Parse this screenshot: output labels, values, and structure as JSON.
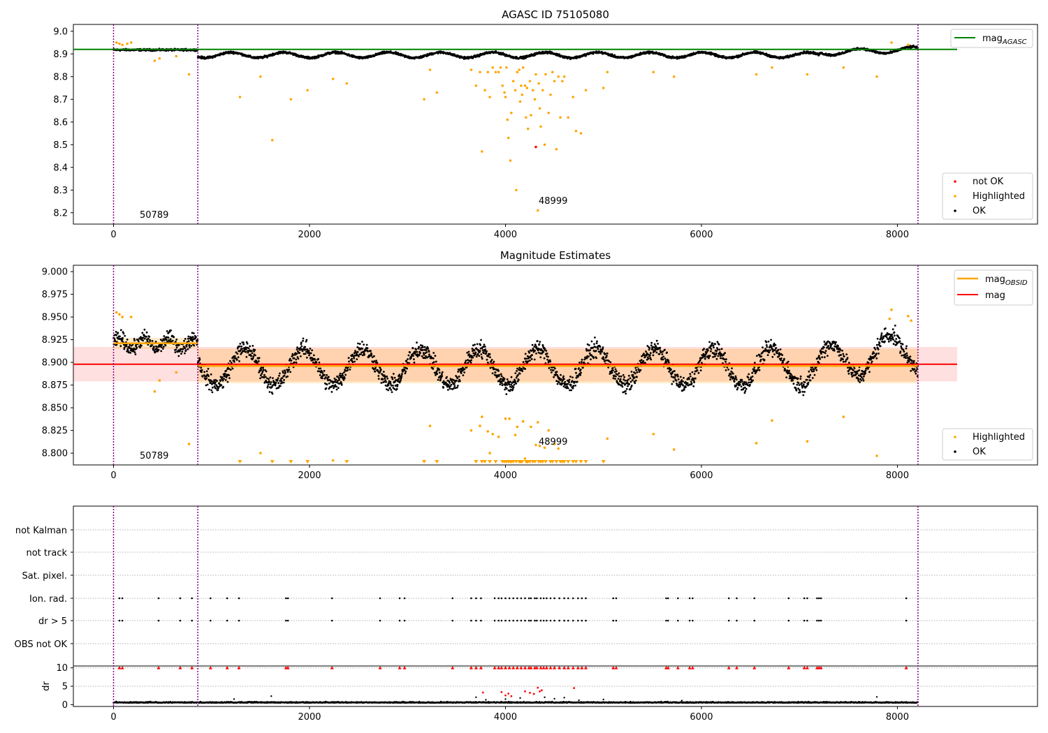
{
  "colors": {
    "ok": "#000000",
    "highlighted": "#ffa500",
    "not_ok": "#ff0000",
    "mag_agasc_line": "#008000",
    "mag_obsid_line": "#ffa500",
    "mag_line": "#ff0000",
    "obs_separator": "#800080"
  },
  "chart_data": [
    {
      "type": "scatter",
      "title": "AGASC ID 75105080",
      "xlim": [
        -410,
        9430
      ],
      "ylim": [
        8.15,
        9.03
      ],
      "xticks": [
        "0",
        "2000",
        "4000",
        "6000",
        "8000"
      ],
      "xtick_values": [
        0,
        2000,
        4000,
        6000,
        8000
      ],
      "yticks": [
        "9.0",
        "8.9",
        "8.8",
        "8.7",
        "8.6",
        "8.5",
        "8.4",
        "8.3",
        "8.2"
      ],
      "ytick_values": [
        9.0,
        8.9,
        8.8,
        8.7,
        8.6,
        8.5,
        8.4,
        8.3,
        8.2
      ],
      "obs_boundaries": [
        0,
        860,
        8210
      ],
      "lines": [
        {
          "name": "mag_AGASC",
          "y": 8.92,
          "x": [
            -410,
            8610
          ]
        }
      ],
      "annotations": [
        {
          "text": "50789",
          "x": 270,
          "y": 8.17
        },
        {
          "text": "48999",
          "x": 4380,
          "y": 8.23
        }
      ],
      "legend_lines": [
        {
          "label": "mag",
          "sub": "AGASC"
        }
      ],
      "legend_points": [
        {
          "label": "not OK"
        },
        {
          "label": "Highlighted"
        },
        {
          "label": "OK"
        }
      ],
      "series": [
        {
          "name": "OK",
          "note": "dense band; mean ≈ 8.92 for obs 50789 (x 0–860), ≈ 8.895 oscillating ±0.02 for obs 48999 (x 860–8210), rising to ≈ 8.92 after x 7200"
        },
        {
          "name": "Highlighted",
          "points": [
            [
              30,
              8.95
            ],
            [
              60,
              8.945
            ],
            [
              90,
              8.94
            ],
            [
              140,
              8.945
            ],
            [
              180,
              8.95
            ],
            [
              420,
              8.87
            ],
            [
              470,
              8.88
            ],
            [
              640,
              8.89
            ],
            [
              770,
              8.81
            ],
            [
              1290,
              8.71
            ],
            [
              1500,
              8.8
            ],
            [
              1620,
              8.52
            ],
            [
              1810,
              8.7
            ],
            [
              1980,
              8.74
            ],
            [
              2240,
              8.79
            ],
            [
              2380,
              8.77
            ],
            [
              3170,
              8.7
            ],
            [
              3230,
              8.83
            ],
            [
              3300,
              8.73
            ],
            [
              3650,
              8.83
            ],
            [
              3700,
              8.76
            ],
            [
              3740,
              8.82
            ],
            [
              3760,
              8.47
            ],
            [
              3790,
              8.74
            ],
            [
              3820,
              8.82
            ],
            [
              3840,
              8.71
            ],
            [
              3870,
              8.84
            ],
            [
              3900,
              8.82
            ],
            [
              3930,
              8.82
            ],
            [
              3950,
              8.84
            ],
            [
              3970,
              8.76
            ],
            [
              3990,
              8.73
            ],
            [
              4000,
              8.71
            ],
            [
              4010,
              8.84
            ],
            [
              4020,
              8.61
            ],
            [
              4030,
              8.53
            ],
            [
              4050,
              8.43
            ],
            [
              4060,
              8.64
            ],
            [
              4080,
              8.78
            ],
            [
              4100,
              8.74
            ],
            [
              4110,
              8.3
            ],
            [
              4120,
              8.82
            ],
            [
              4140,
              8.83
            ],
            [
              4150,
              8.69
            ],
            [
              4160,
              8.76
            ],
            [
              4170,
              8.72
            ],
            [
              4180,
              8.84
            ],
            [
              4200,
              8.76
            ],
            [
              4210,
              8.62
            ],
            [
              4220,
              8.75
            ],
            [
              4230,
              8.57
            ],
            [
              4250,
              8.78
            ],
            [
              4260,
              8.63
            ],
            [
              4280,
              8.74
            ],
            [
              4300,
              8.7
            ],
            [
              4310,
              8.81
            ],
            [
              4330,
              8.21
            ],
            [
              4340,
              8.77
            ],
            [
              4350,
              8.66
            ],
            [
              4360,
              8.58
            ],
            [
              4380,
              8.74
            ],
            [
              4400,
              8.5
            ],
            [
              4410,
              8.81
            ],
            [
              4440,
              8.64
            ],
            [
              4460,
              8.72
            ],
            [
              4480,
              8.82
            ],
            [
              4500,
              8.78
            ],
            [
              4520,
              8.48
            ],
            [
              4540,
              8.8
            ],
            [
              4560,
              8.62
            ],
            [
              4580,
              8.78
            ],
            [
              4600,
              8.8
            ],
            [
              4640,
              8.62
            ],
            [
              4690,
              8.71
            ],
            [
              4720,
              8.56
            ],
            [
              4770,
              8.55
            ],
            [
              4820,
              8.74
            ],
            [
              5000,
              8.75
            ],
            [
              5040,
              8.82
            ],
            [
              5510,
              8.82
            ],
            [
              5720,
              8.8
            ],
            [
              6560,
              8.81
            ],
            [
              6720,
              8.84
            ],
            [
              7080,
              8.81
            ],
            [
              7450,
              8.84
            ],
            [
              7790,
              8.8
            ],
            [
              7940,
              8.95
            ],
            [
              8110,
              8.94
            ]
          ]
        },
        {
          "name": "not OK",
          "points": [
            [
              4310,
              8.49
            ]
          ]
        }
      ]
    },
    {
      "type": "scatter",
      "title": "Magnitude Estimates",
      "xlim": [
        -410,
        9430
      ],
      "ylim": [
        8.787,
        9.007
      ],
      "xticks": [
        "0",
        "2000",
        "4000",
        "6000",
        "8000"
      ],
      "xtick_values": [
        0,
        2000,
        4000,
        6000,
        8000
      ],
      "yticks": [
        "9.000",
        "8.975",
        "8.950",
        "8.925",
        "8.900",
        "8.875",
        "8.850",
        "8.825",
        "8.800"
      ],
      "ytick_values": [
        9.0,
        8.975,
        8.95,
        8.925,
        8.9,
        8.875,
        8.85,
        8.825,
        8.8
      ],
      "obs_boundaries": [
        0,
        860,
        8210
      ],
      "mag_band": {
        "y": 8.898,
        "low": 8.879,
        "high": 8.917,
        "x": [
          -410,
          8610
        ]
      },
      "mag_obsid": [
        {
          "x": [
            0,
            860
          ],
          "y": 8.921,
          "low": 8.915,
          "high": 8.927
        },
        {
          "x": [
            860,
            8210
          ],
          "y": 8.896,
          "low": 8.877,
          "high": 8.915
        }
      ],
      "annotations": [
        {
          "text": "50789",
          "x": 270,
          "y": 8.793
        },
        {
          "text": "48999",
          "x": 4380,
          "y": 8.81
        }
      ],
      "legend_lines": [
        {
          "label": "mag",
          "sub": "OBSID"
        },
        {
          "label": "mag",
          "sub": ""
        }
      ],
      "legend_points": [
        {
          "label": "Highlighted"
        },
        {
          "label": "OK"
        }
      ],
      "series": [
        {
          "name": "OK",
          "note": "dense oscillating band: ≈8.92±0.015 for x 0–860; ≈8.895±0.03 for x 860–8210"
        },
        {
          "name": "Highlighted",
          "points": [
            [
              30,
              8.955
            ],
            [
              60,
              8.953
            ],
            [
              90,
              8.95
            ],
            [
              180,
              8.95
            ],
            [
              420,
              8.868
            ],
            [
              470,
              8.88
            ],
            [
              640,
              8.889
            ],
            [
              770,
              8.81
            ],
            [
              1500,
              8.8
            ],
            [
              2240,
              8.792
            ],
            [
              3230,
              8.83
            ],
            [
              3650,
              8.825
            ],
            [
              3740,
              8.83
            ],
            [
              3760,
              8.84
            ],
            [
              3820,
              8.824
            ],
            [
              3840,
              8.8
            ],
            [
              3870,
              8.821
            ],
            [
              3930,
              8.818
            ],
            [
              4000,
              8.838
            ],
            [
              4040,
              8.838
            ],
            [
              4100,
              8.82
            ],
            [
              4120,
              8.829
            ],
            [
              4180,
              8.835
            ],
            [
              4200,
              8.794
            ],
            [
              4260,
              8.829
            ],
            [
              4310,
              8.809
            ],
            [
              4330,
              8.834
            ],
            [
              4350,
              8.808
            ],
            [
              4400,
              8.806
            ],
            [
              4440,
              8.825
            ],
            [
              4500,
              8.81
            ],
            [
              4540,
              8.805
            ],
            [
              5040,
              8.816
            ],
            [
              5510,
              8.821
            ],
            [
              5720,
              8.804
            ],
            [
              6560,
              8.811
            ],
            [
              6720,
              8.836
            ],
            [
              7080,
              8.813
            ],
            [
              7450,
              8.84
            ],
            [
              7790,
              8.797
            ],
            [
              7920,
              8.948
            ],
            [
              7940,
              8.958
            ],
            [
              8110,
              8.951
            ],
            [
              8140,
              8.946
            ]
          ]
        },
        {
          "name": "Highlighted (below range)",
          "x": [
            1290,
            1620,
            1810,
            1980,
            2380,
            3170,
            3300,
            3700,
            3760,
            3790,
            3840,
            3900,
            3970,
            3990,
            4010,
            4030,
            4050,
            4060,
            4080,
            4110,
            4140,
            4150,
            4160,
            4170,
            4210,
            4220,
            4230,
            4250,
            4280,
            4300,
            4340,
            4360,
            4380,
            4410,
            4460,
            4480,
            4520,
            4560,
            4580,
            4600,
            4640,
            4690,
            4720,
            4770,
            4820,
            5000
          ]
        }
      ]
    },
    {
      "type": "scatter",
      "title": "",
      "xlim": [
        -410,
        9430
      ],
      "obs_boundaries": [
        0,
        860,
        8210
      ],
      "flag_rows": [
        "not Kalman",
        "not track",
        "Sat. pixel.",
        "Ion. rad.",
        "dr > 5",
        "OBS not OK"
      ],
      "flag_x": [
        60,
        90,
        460,
        680,
        800,
        990,
        1160,
        1280,
        1760,
        1780,
        2230,
        2720,
        2920,
        2970,
        3460,
        3650,
        3700,
        3750,
        3890,
        3930,
        3960,
        4000,
        4040,
        4080,
        4120,
        4160,
        4200,
        4240,
        4260,
        4300,
        4320,
        4360,
        4390,
        4420,
        4460,
        4500,
        4550,
        4600,
        4640,
        4690,
        4740,
        4780,
        4820,
        5100,
        5130,
        5640,
        5660,
        5760,
        5880,
        5910,
        6280,
        6360,
        6540,
        6890,
        7050,
        7080,
        7180,
        7200,
        7220,
        8090
      ],
      "dr_ylim": [
        -0.5,
        10.5
      ],
      "dr_yticks": [
        "0",
        "5",
        "10"
      ],
      "dr_ytick_values": [
        0,
        5,
        10
      ],
      "dr_ylabel": "dr",
      "xticks": [
        "0",
        "2000",
        "4000",
        "6000",
        "8000"
      ],
      "xtick_values": [
        0,
        2000,
        4000,
        6000,
        8000
      ],
      "series": [
        {
          "name": "OK dr",
          "note": "dense band near dr ≈ 0.5"
        },
        {
          "name": "not OK dr",
          "points": [
            [
              3770,
              3.3
            ],
            [
              3960,
              3.4
            ],
            [
              4000,
              2.5
            ],
            [
              4030,
              3.0
            ],
            [
              4060,
              2.3
            ],
            [
              4200,
              3.6
            ],
            [
              4250,
              3.2
            ],
            [
              4290,
              2.9
            ],
            [
              4330,
              4.6
            ],
            [
              4350,
              3.6
            ],
            [
              4370,
              3.9
            ],
            [
              4700,
              4.5
            ]
          ]
        },
        {
          "name": "OK dr outliers",
          "points": [
            [
              1230,
              1.5
            ],
            [
              1610,
              2.3
            ],
            [
              3700,
              2.0
            ],
            [
              3800,
              1.3
            ],
            [
              4000,
              1.5
            ],
            [
              4150,
              1.8
            ],
            [
              4400,
              2.0
            ],
            [
              4500,
              1.6
            ],
            [
              4600,
              1.9
            ],
            [
              4750,
              1.2
            ],
            [
              5000,
              1.4
            ],
            [
              5800,
              1.1
            ],
            [
              7790,
              2.1
            ]
          ]
        }
      ]
    }
  ]
}
